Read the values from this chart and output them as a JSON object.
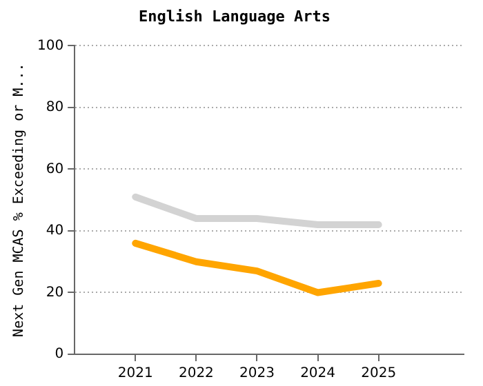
{
  "chart_data": {
    "type": "line",
    "title": "English Language Arts",
    "ylabel": "Next Gen MCAS % Exceeding or M...",
    "x": [
      2021,
      2022,
      2023,
      2024,
      2025
    ],
    "series": [
      {
        "color": "#d3d3d3",
        "values": [
          51,
          44,
          44,
          42,
          42
        ]
      },
      {
        "color": "#ffa500",
        "values": [
          36,
          30,
          27,
          20,
          23
        ]
      }
    ],
    "xlim": [
      2020,
      2026.4
    ],
    "xticks": [
      2021,
      2022,
      2023,
      2024,
      2025
    ],
    "ylim": [
      0,
      100
    ],
    "yticks": [
      0,
      20,
      40,
      60,
      80,
      100
    ],
    "grid": "y",
    "legend": false,
    "marker": "none",
    "line_style": "solid"
  }
}
